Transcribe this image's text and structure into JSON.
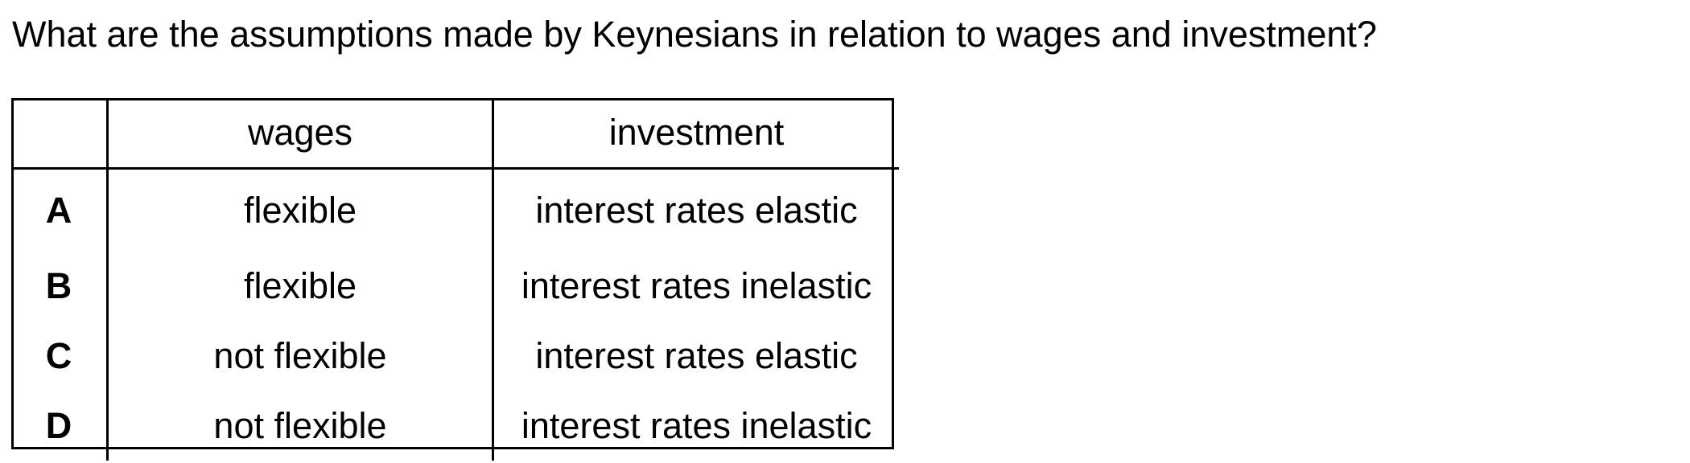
{
  "question": "What are the assumptions made by Keynesians in relation to wages and investment?",
  "table": {
    "headers": [
      "",
      "wages",
      "investment"
    ],
    "rows": [
      {
        "letter": "A",
        "wages": "flexible",
        "investment": "interest rates elastic"
      },
      {
        "letter": "B",
        "wages": "flexible",
        "investment": "interest rates inelastic"
      },
      {
        "letter": "C",
        "wages": "not flexible",
        "investment": "interest rates elastic"
      },
      {
        "letter": "D",
        "wages": "not flexible",
        "investment": "interest rates inelastic"
      }
    ]
  }
}
